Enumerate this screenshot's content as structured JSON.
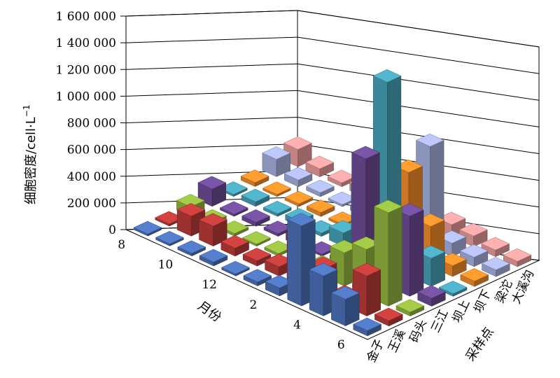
{
  "chart_data": {
    "type": "bar",
    "subtype": "3d-column",
    "ylabel": "细胞密度/cell·L",
    "ylabel_superscript": "−1",
    "xlabel": "月份",
    "zlabel": "采样点",
    "ylim": [
      0,
      1600000
    ],
    "yticks": [
      "0",
      "200 000",
      "400 000",
      "600 000",
      "800 000",
      "1 000 000",
      "1 200 000",
      "1 400 000",
      "1 600 000"
    ],
    "months": [
      "8",
      "9",
      "10",
      "11",
      "12",
      "1",
      "2",
      "3",
      "4",
      "5",
      "6"
    ],
    "month_tick_labels": [
      "8",
      "10",
      "12",
      "2",
      "4",
      "6"
    ],
    "series": [
      {
        "name": "金子",
        "color": "#4a6fb5",
        "values": [
          10000,
          15000,
          20000,
          30000,
          5000,
          30000,
          60000,
          600000,
          300000,
          200000,
          40000
        ]
      },
      {
        "name": "王溪",
        "color": "#b83a38",
        "values": [
          10000,
          150000,
          150000,
          60000,
          40000,
          70000,
          380000,
          200000,
          60000,
          300000,
          40000
        ]
      },
      {
        "name": "码头",
        "color": "#8fb33f",
        "values": [
          70000,
          30000,
          20000,
          15000,
          20000,
          10000,
          60000,
          250000,
          350000,
          700000,
          30000
        ]
      },
      {
        "name": "三江",
        "color": "#6b4a94",
        "values": [
          130000,
          10000,
          30000,
          20000,
          60000,
          15000,
          35000,
          880000,
          350000,
          600000,
          60000
        ]
      },
      {
        "name": "坝上",
        "color": "#46a0b5",
        "values": [
          10000,
          35000,
          20000,
          40000,
          25000,
          100000,
          500000,
          1380000,
          300000,
          210000,
          20000
        ]
      },
      {
        "name": "坝下",
        "color": "#f08a2a",
        "values": [
          30000,
          15000,
          20000,
          30000,
          10000,
          30000,
          60000,
          630000,
          300000,
          80000,
          40000
        ]
      },
      {
        "name": "梁沱",
        "color": "#a4aedb",
        "values": [
          130000,
          50000,
          30000,
          15000,
          30000,
          20000,
          100000,
          750000,
          100000,
          70000,
          50000
        ]
      },
      {
        "name": "大溪沟",
        "color": "#e79a9a",
        "values": [
          130000,
          60000,
          30000,
          60000,
          30000,
          150000,
          200000,
          90000,
          80000,
          50000,
          40000
        ]
      }
    ]
  }
}
